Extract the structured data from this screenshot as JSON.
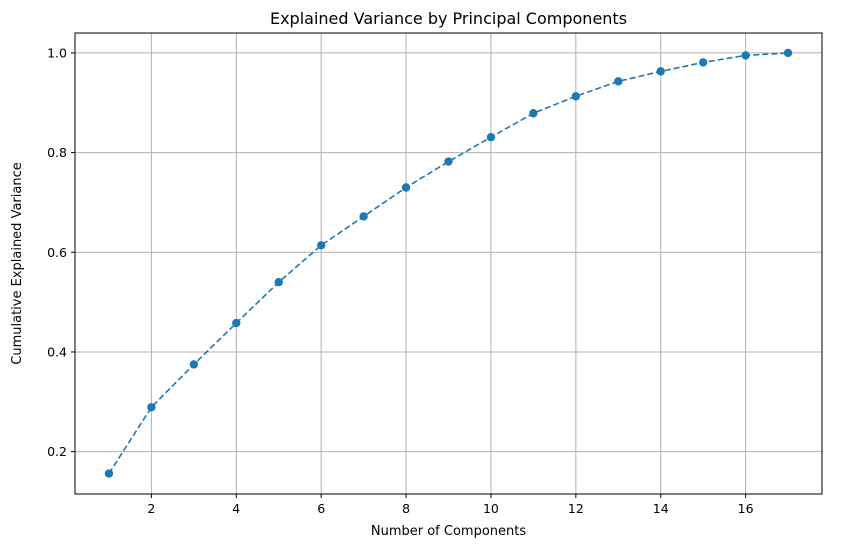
{
  "chart_data": {
    "type": "line",
    "title": "Explained Variance by Principal Components",
    "xlabel": "Number of Components",
    "ylabel": "Cumulative Explained Variance",
    "xlim": [
      0.2,
      17.8
    ],
    "ylim": [
      0.115,
      1.04
    ],
    "xticks": [
      2,
      4,
      6,
      8,
      10,
      12,
      14,
      16
    ],
    "yticks": [
      0.2,
      0.4,
      0.6,
      0.8,
      1.0
    ],
    "ytick_labels": [
      "0.2",
      "0.4",
      "0.6",
      "0.8",
      "1.0"
    ],
    "grid": true,
    "line_style": "dashed",
    "marker": "circle",
    "color": "#1f77b4",
    "x": [
      1,
      2,
      3,
      4,
      5,
      6,
      7,
      8,
      9,
      10,
      11,
      12,
      13,
      14,
      15,
      16,
      17
    ],
    "y": [
      0.156,
      0.289,
      0.375,
      0.458,
      0.54,
      0.614,
      0.672,
      0.73,
      0.782,
      0.831,
      0.879,
      0.913,
      0.943,
      0.963,
      0.981,
      0.995,
      1.0
    ]
  }
}
